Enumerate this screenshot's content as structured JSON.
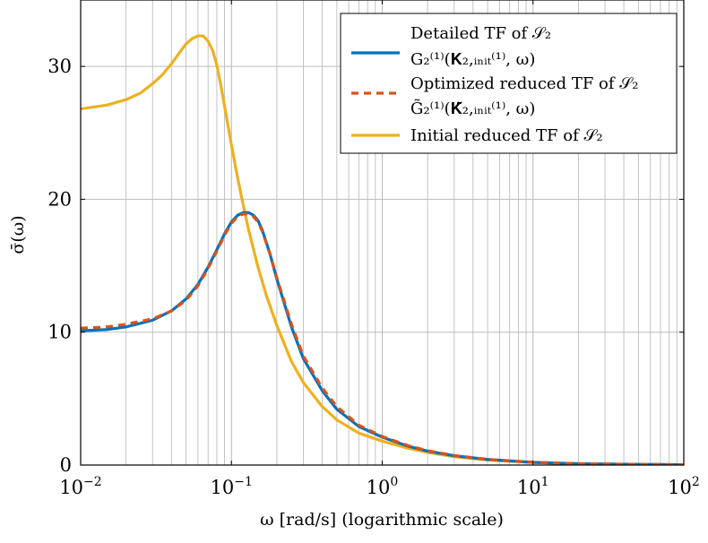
{
  "chart_data": {
    "type": "line",
    "title": "",
    "xlabel": "ω [rad/s] (logarithmic scale)",
    "ylabel": "σ̄(ω)",
    "xscale": "log",
    "xlim": [
      0.01,
      100
    ],
    "ylim": [
      0,
      35
    ],
    "grid": "on (major and minor, x log grid)",
    "legend_placement": "top-right",
    "x_ticks": [
      {
        "value": 0.01,
        "base": "10",
        "exp": "−2"
      },
      {
        "value": 0.1,
        "base": "10",
        "exp": "−1"
      },
      {
        "value": 1,
        "base": "10",
        "exp": "0"
      },
      {
        "value": 10,
        "base": "10",
        "exp": "1"
      },
      {
        "value": 100,
        "base": "10",
        "exp": "2"
      }
    ],
    "y_ticks": [
      {
        "value": 0,
        "label": "0"
      },
      {
        "value": 10,
        "label": "10"
      },
      {
        "value": 20,
        "label": "20"
      },
      {
        "value": 30,
        "label": "30"
      }
    ],
    "series": [
      {
        "name": "Detailed TF of S2 G2(1)(K(1)2,init, ω)",
        "legend_lines": [
          "Detailed TF of 𝒮₂",
          "G₂⁽¹⁾(𝐊₂,ᵢₙᵢₜ⁽¹⁾, ω)"
        ],
        "color": "#0072BD",
        "style": "solid",
        "x": [
          0.01,
          0.015,
          0.02,
          0.03,
          0.04,
          0.05,
          0.06,
          0.07,
          0.08,
          0.09,
          0.1,
          0.11,
          0.12,
          0.13,
          0.14,
          0.15,
          0.16,
          0.18,
          0.2,
          0.25,
          0.3,
          0.4,
          0.5,
          0.7,
          1,
          1.5,
          2,
          3,
          5,
          10,
          20,
          50,
          100
        ],
        "y": [
          10.1,
          10.2,
          10.4,
          10.9,
          11.6,
          12.5,
          13.6,
          14.9,
          16.2,
          17.4,
          18.3,
          18.8,
          19.0,
          19.0,
          18.8,
          18.4,
          17.7,
          15.9,
          14.0,
          10.4,
          8.0,
          5.6,
          4.2,
          2.9,
          2.1,
          1.4,
          1.05,
          0.7,
          0.42,
          0.2,
          0.1,
          0.05,
          0.03
        ]
      },
      {
        "name": "Optimized reduced TF of S2 G̃2(1)(K̃(1)2,init, ω)",
        "legend_lines": [
          "Optimized reduced TF of 𝒮₂",
          "G̃₂⁽¹⁾(𝐊̃₂,ᵢₙᵢₜ⁽¹⁾, ω)"
        ],
        "color": "#D95319",
        "style": "dashed",
        "x": [
          0.01,
          0.015,
          0.02,
          0.03,
          0.04,
          0.05,
          0.06,
          0.07,
          0.08,
          0.09,
          0.1,
          0.11,
          0.12,
          0.13,
          0.14,
          0.15,
          0.16,
          0.18,
          0.2,
          0.25,
          0.3,
          0.4,
          0.5,
          0.7,
          1,
          1.5,
          2,
          3,
          5,
          10,
          20,
          50,
          100
        ],
        "y": [
          10.3,
          10.4,
          10.6,
          11.0,
          11.6,
          12.4,
          13.5,
          14.8,
          16.1,
          17.3,
          18.2,
          18.7,
          18.9,
          18.9,
          18.7,
          18.3,
          17.6,
          15.9,
          14.1,
          10.6,
          8.2,
          5.8,
          4.4,
          3.0,
          2.15,
          1.45,
          1.08,
          0.72,
          0.43,
          0.21,
          0.1,
          0.05,
          0.03
        ]
      },
      {
        "name": "Initial reduced TF of S2",
        "legend_lines": [
          "Initial reduced TF of 𝒮₂"
        ],
        "color": "#EDB120",
        "style": "solid",
        "x": [
          0.01,
          0.015,
          0.02,
          0.025,
          0.03,
          0.035,
          0.04,
          0.045,
          0.05,
          0.055,
          0.06,
          0.065,
          0.07,
          0.075,
          0.08,
          0.085,
          0.09,
          0.1,
          0.11,
          0.12,
          0.13,
          0.15,
          0.17,
          0.2,
          0.25,
          0.3,
          0.4,
          0.5,
          0.7,
          1,
          1.5,
          2,
          3,
          5,
          10,
          20,
          50,
          100
        ],
        "y": [
          26.8,
          27.1,
          27.5,
          28.0,
          28.7,
          29.4,
          30.2,
          31.0,
          31.7,
          32.1,
          32.3,
          32.3,
          31.9,
          31.2,
          30.1,
          28.6,
          27.0,
          24.1,
          21.6,
          19.5,
          17.7,
          14.9,
          12.8,
          10.5,
          7.8,
          6.2,
          4.4,
          3.4,
          2.4,
          1.8,
          1.25,
          0.95,
          0.63,
          0.38,
          0.19,
          0.09,
          0.04,
          0.02
        ]
      }
    ]
  }
}
